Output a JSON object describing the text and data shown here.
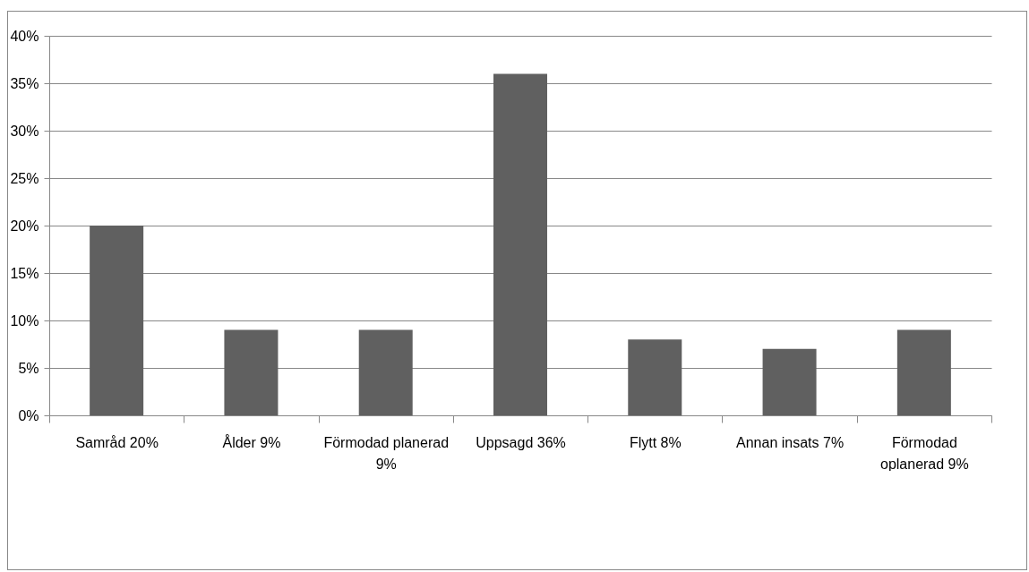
{
  "chart_data": {
    "type": "bar",
    "categories": [
      "Samråd 20%",
      "Ålder 9%",
      "Förmodad planerad 9%",
      "Uppsagd 36%",
      "Flytt 8%",
      "Annan insats 7%",
      "Förmodad oplanerad 9%"
    ],
    "values": [
      20,
      9,
      9,
      36,
      8,
      7,
      9
    ],
    "color": "#606060",
    "ylim": [
      0,
      40
    ],
    "yticks": [
      {
        "value": 0,
        "label": "0%"
      },
      {
        "value": 5,
        "label": "5%"
      },
      {
        "value": 10,
        "label": "10%"
      },
      {
        "value": 15,
        "label": "15%"
      },
      {
        "value": 20,
        "label": "20%"
      },
      {
        "value": 25,
        "label": "25%"
      },
      {
        "value": 30,
        "label": "30%"
      },
      {
        "value": 35,
        "label": "35%"
      },
      {
        "value": 40,
        "label": "40%"
      }
    ],
    "grid": "y"
  }
}
